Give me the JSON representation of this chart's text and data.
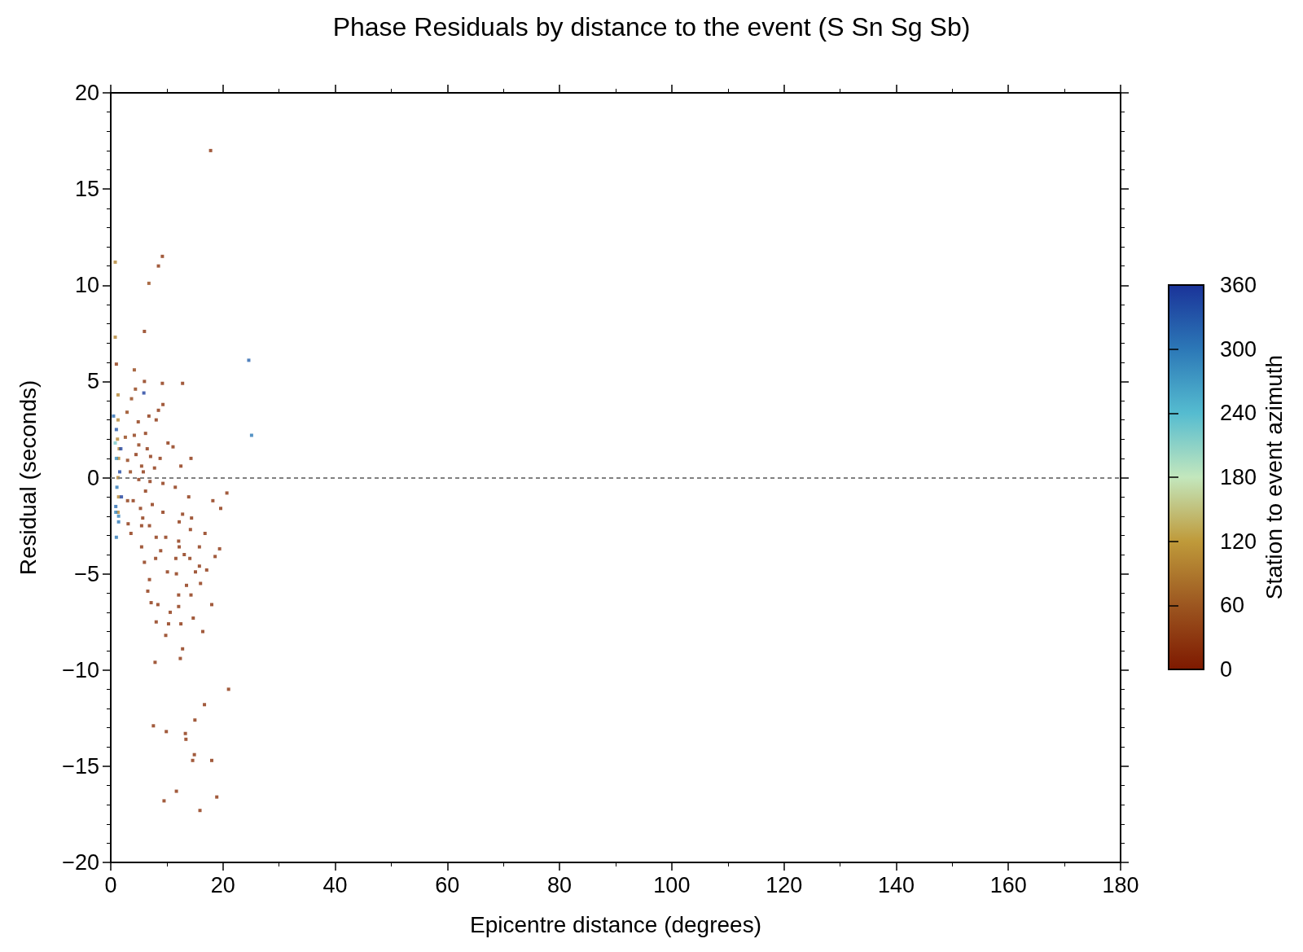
{
  "chart_data": {
    "type": "scatter",
    "title": "Phase Residuals by distance to the event (S Sn Sg Sb)",
    "xlabel": "Epicentre distance (degrees)",
    "ylabel": "Residual (seconds)",
    "clabel": "Station to event azimuth",
    "marker": "square",
    "xlim": [
      0,
      180
    ],
    "xticks": [
      0,
      {
        "value": 10,
        "label": null
      },
      20,
      {
        "value": 30,
        "label": null
      },
      40,
      {
        "value": 50,
        "label": null
      },
      60,
      {
        "value": 70,
        "label": null
      },
      80,
      {
        "value": 90,
        "label": null
      },
      100,
      {
        "value": 110,
        "label": null
      },
      120,
      {
        "value": 130,
        "label": null
      },
      140,
      {
        "value": 150,
        "label": null
      },
      160,
      {
        "value": 170,
        "label": null
      },
      180
    ],
    "ylim": [
      -20,
      20
    ],
    "yticks": [
      {
        "value": -20,
        "label": "−20"
      },
      {
        "value": -19,
        "label": null
      },
      {
        "value": -18,
        "label": null
      },
      {
        "value": -17,
        "label": null
      },
      {
        "value": -16,
        "label": null
      },
      {
        "value": -15,
        "label": "−15"
      },
      {
        "value": -14,
        "label": null
      },
      {
        "value": -13,
        "label": null
      },
      {
        "value": -12,
        "label": null
      },
      {
        "value": -11,
        "label": null
      },
      {
        "value": -10,
        "label": "−10"
      },
      {
        "value": -9,
        "label": null
      },
      {
        "value": -8,
        "label": null
      },
      {
        "value": -7,
        "label": null
      },
      {
        "value": -6,
        "label": null
      },
      {
        "value": -5,
        "label": "−5"
      },
      {
        "value": -4,
        "label": null
      },
      {
        "value": -3,
        "label": null
      },
      {
        "value": -2,
        "label": null
      },
      {
        "value": -1,
        "label": null
      },
      0,
      {
        "value": 1,
        "label": null
      },
      {
        "value": 2,
        "label": null
      },
      {
        "value": 3,
        "label": null
      },
      {
        "value": 4,
        "label": null
      },
      5,
      {
        "value": 6,
        "label": null
      },
      {
        "value": 7,
        "label": null
      },
      {
        "value": 8,
        "label": null
      },
      {
        "value": 9,
        "label": null
      },
      10,
      {
        "value": 11,
        "label": null
      },
      {
        "value": 12,
        "label": null
      },
      {
        "value": 13,
        "label": null
      },
      {
        "value": 14,
        "label": null
      },
      15,
      {
        "value": 16,
        "label": null
      },
      {
        "value": 17,
        "label": null
      },
      {
        "value": 18,
        "label": null
      },
      {
        "value": 19,
        "label": null
      },
      20
    ],
    "clim": [
      0,
      360
    ],
    "cticks": [
      0,
      60,
      120,
      180,
      240,
      300,
      360
    ],
    "ref_lines": [
      {
        "axis": "y",
        "value": 0,
        "color": "#808080",
        "line_style": "dashed"
      }
    ],
    "x": [
      17.8,
      9.2,
      8.5,
      6.8,
      0.8,
      6.0,
      0.8,
      24.6,
      25.1,
      12.8,
      9.2,
      6.0,
      4.2,
      1.0,
      5.9,
      11.1,
      14.3,
      12.5,
      20.7,
      18.2,
      19.6,
      16.8,
      19.4,
      18.6,
      17.1,
      18.0,
      16.4,
      21.0,
      16.7,
      15.0,
      7.6,
      9.9,
      13.3,
      13.4,
      14.9,
      14.6,
      18.0,
      11.7,
      18.9,
      9.5,
      15.9,
      7.9,
      12.4,
      12.8,
      9.8,
      12.5,
      10.3,
      8.1,
      14.7,
      7.2,
      12.1,
      10.6,
      8.4,
      6.6,
      14.3,
      12.1,
      13.5,
      16.0,
      6.9,
      15.1,
      10.1,
      11.7,
      6.0,
      14.1,
      11.6,
      8.0,
      13.1,
      15.8,
      5.5,
      8.9,
      12.2,
      15.8,
      12.1,
      14.2,
      9.8,
      14.4,
      12.8,
      12.2,
      3.6,
      3.1,
      13.9,
      11.5,
      9.3,
      8.5,
      2.9,
      3.7,
      4.4,
      8.1,
      10.2,
      4.9,
      6.2,
      2.6,
      5.0,
      7.1,
      3.0,
      8.8,
      5.5,
      3.5,
      5.0,
      3.0,
      6.2,
      9.3,
      7.4,
      5.7,
      9.3,
      6.9,
      8.1,
      5.5,
      4.0,
      4.5,
      6.5,
      5.8,
      7.8,
      4.2,
      6.8,
      5.3,
      7.0,
      1.3,
      1.3,
      1.2,
      1.4,
      1.3,
      1.4,
      1.5,
      1.3,
      1.0,
      0.5,
      1.8,
      1.6,
      1.1,
      1.9,
      0.9,
      1.0,
      1.4,
      1.0,
      0.9,
      1.4,
      0.8
    ],
    "values": [
      17.0,
      11.5,
      11.0,
      10.1,
      11.2,
      7.6,
      7.3,
      6.1,
      2.2,
      4.9,
      4.9,
      5.0,
      5.6,
      5.9,
      4.4,
      1.6,
      1.0,
      0.6,
      -0.8,
      -1.2,
      -1.6,
      -2.9,
      -3.7,
      -4.1,
      -4.8,
      -6.6,
      -8.0,
      -11.0,
      -11.8,
      -12.6,
      -12.9,
      -13.2,
      -13.3,
      -13.6,
      -14.4,
      -14.7,
      -14.7,
      -16.3,
      -16.6,
      -16.8,
      -17.3,
      -9.6,
      -9.4,
      -8.9,
      -8.2,
      -7.6,
      -7.6,
      -7.5,
      -7.3,
      -6.5,
      -6.7,
      -7.0,
      -6.6,
      -5.9,
      -6.1,
      -6.1,
      -5.6,
      -5.5,
      -5.3,
      -4.9,
      -4.9,
      -5.0,
      -4.4,
      -4.2,
      -4.2,
      -4.2,
      -4.0,
      -4.6,
      -3.6,
      -3.8,
      -3.6,
      -3.6,
      -3.3,
      -2.7,
      -3.1,
      -2.1,
      -1.9,
      -2.3,
      -2.9,
      -2.4,
      -1.0,
      -0.5,
      3.8,
      3.5,
      3.4,
      4.1,
      4.6,
      3.0,
      1.8,
      2.9,
      2.3,
      2.1,
      1.7,
      1.1,
      0.9,
      1.0,
      0.6,
      0.3,
      -0.1,
      -1.2,
      -0.7,
      -0.3,
      -1.4,
      -2.1,
      -1.8,
      -2.5,
      -3.1,
      -2.5,
      -1.2,
      1.2,
      1.5,
      0.3,
      0.5,
      2.2,
      3.2,
      -1.6,
      -0.2,
      4.3,
      3.0,
      2.0,
      1.0,
      0.0,
      -1.0,
      1.5,
      -1.8,
      2.5,
      3.2,
      1.5,
      0.3,
      -0.5,
      -1.0,
      -1.8,
      1.0,
      -2.3,
      -3.1,
      -1.5,
      -2.0,
      1.8
    ],
    "cvalues": [
      25,
      25,
      25,
      45,
      100,
      25,
      100,
      320,
      300,
      25,
      25,
      25,
      40,
      30,
      350,
      25,
      25,
      25,
      25,
      25,
      25,
      25,
      25,
      25,
      25,
      25,
      25,
      25,
      25,
      25,
      25,
      25,
      25,
      25,
      25,
      25,
      25,
      25,
      25,
      25,
      25,
      25,
      25,
      25,
      25,
      25,
      25,
      25,
      25,
      25,
      25,
      25,
      25,
      25,
      25,
      25,
      25,
      25,
      25,
      25,
      25,
      25,
      25,
      25,
      25,
      25,
      25,
      25,
      25,
      25,
      25,
      25,
      25,
      25,
      25,
      25,
      25,
      25,
      25,
      25,
      25,
      25,
      25,
      25,
      40,
      40,
      35,
      25,
      25,
      30,
      25,
      40,
      30,
      25,
      35,
      25,
      30,
      35,
      25,
      30,
      25,
      25,
      25,
      25,
      25,
      25,
      25,
      25,
      25,
      25,
      25,
      25,
      25,
      30,
      25,
      25,
      25,
      100,
      100,
      100,
      100,
      100,
      100,
      100,
      100,
      330,
      310,
      345,
      340,
      300,
      350,
      290,
      280,
      300,
      300,
      310,
      290,
      220
    ]
  }
}
